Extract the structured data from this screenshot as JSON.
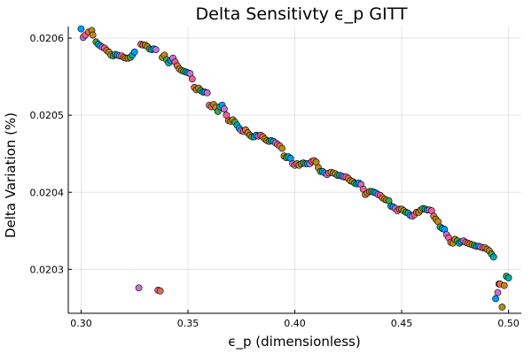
{
  "chart_data": {
    "type": "scatter",
    "title": "Delta Sensitivty ϵ_p GITT",
    "xlabel": "ϵ_p (dimensionless)",
    "ylabel": "Delta Variation (%)",
    "xlim": [
      0.294,
      0.506
    ],
    "ylim": [
      0.020243,
      0.020615
    ],
    "xticks": [
      {
        "value": 0.3,
        "label": "0.30"
      },
      {
        "value": 0.35,
        "label": "0.35"
      },
      {
        "value": 0.4,
        "label": "0.40"
      },
      {
        "value": 0.45,
        "label": "0.45"
      },
      {
        "value": 0.5,
        "label": "0.50"
      }
    ],
    "yticks": [
      {
        "value": 0.0203,
        "label": "0.0203"
      },
      {
        "value": 0.0204,
        "label": "0.0204"
      },
      {
        "value": 0.0205,
        "label": "0.0205"
      },
      {
        "value": 0.0206,
        "label": "0.0206"
      }
    ],
    "grid": true,
    "legend": "none",
    "palette": [
      "#009AFA",
      "#E36F47",
      "#3EA44E",
      "#C371D2",
      "#AC8E18",
      "#00AAAE",
      "#ED5E93",
      "#C68225"
    ],
    "points": [
      [
        0.3,
        0.020612
      ],
      [
        0.301,
        0.020601
      ],
      [
        0.302,
        0.020604
      ],
      [
        0.3035,
        0.020608
      ],
      [
        0.305,
        0.02061
      ],
      [
        0.3055,
        0.020604
      ],
      [
        0.307,
        0.020595
      ],
      [
        0.308,
        0.020592
      ],
      [
        0.309,
        0.02059
      ],
      [
        0.31,
        0.020588
      ],
      [
        0.311,
        0.020587
      ],
      [
        0.312,
        0.020584
      ],
      [
        0.313,
        0.020582
      ],
      [
        0.314,
        0.020578
      ],
      [
        0.315,
        0.020577
      ],
      [
        0.316,
        0.020579
      ],
      [
        0.317,
        0.020578
      ],
      [
        0.318,
        0.020577
      ],
      [
        0.319,
        0.020577
      ],
      [
        0.32,
        0.020575
      ],
      [
        0.321,
        0.020574
      ],
      [
        0.322,
        0.020574
      ],
      [
        0.323,
        0.020575
      ],
      [
        0.324,
        0.020578
      ],
      [
        0.325,
        0.020582
      ],
      [
        0.327,
        0.020276
      ],
      [
        0.328,
        0.020592
      ],
      [
        0.329,
        0.020591
      ],
      [
        0.33,
        0.020591
      ],
      [
        0.331,
        0.020589
      ],
      [
        0.332,
        0.020586
      ],
      [
        0.333,
        0.020585
      ],
      [
        0.334,
        0.020586
      ],
      [
        0.335,
        0.020585
      ],
      [
        0.336,
        0.020273
      ],
      [
        0.337,
        0.020272
      ],
      [
        0.338,
        0.020575
      ],
      [
        0.339,
        0.020578
      ],
      [
        0.34,
        0.020572
      ],
      [
        0.341,
        0.020568
      ],
      [
        0.342,
        0.020571
      ],
      [
        0.343,
        0.020574
      ],
      [
        0.344,
        0.020569
      ],
      [
        0.345,
        0.020564
      ],
      [
        0.346,
        0.02056
      ],
      [
        0.347,
        0.020558
      ],
      [
        0.348,
        0.020557
      ],
      [
        0.349,
        0.020556
      ],
      [
        0.35,
        0.020555
      ],
      [
        0.351,
        0.020554
      ],
      [
        0.352,
        0.020547
      ],
      [
        0.353,
        0.020536
      ],
      [
        0.354,
        0.020533
      ],
      [
        0.355,
        0.020535
      ],
      [
        0.356,
        0.020532
      ],
      [
        0.357,
        0.02053
      ],
      [
        0.358,
        0.02053
      ],
      [
        0.359,
        0.020529
      ],
      [
        0.36,
        0.020513
      ],
      [
        0.361,
        0.020511
      ],
      [
        0.362,
        0.020514
      ],
      [
        0.363,
        0.02051
      ],
      [
        0.364,
        0.020505
      ],
      [
        0.365,
        0.020511
      ],
      [
        0.366,
        0.020513
      ],
      [
        0.367,
        0.020508
      ],
      [
        0.368,
        0.0205
      ],
      [
        0.369,
        0.020493
      ],
      [
        0.37,
        0.020492
      ],
      [
        0.371,
        0.020494
      ],
      [
        0.372,
        0.020491
      ],
      [
        0.373,
        0.020487
      ],
      [
        0.374,
        0.020483
      ],
      [
        0.375,
        0.02048
      ],
      [
        0.376,
        0.020479
      ],
      [
        0.377,
        0.020481
      ],
      [
        0.378,
        0.020477
      ],
      [
        0.379,
        0.020474
      ],
      [
        0.38,
        0.020472
      ],
      [
        0.381,
        0.020472
      ],
      [
        0.382,
        0.020474
      ],
      [
        0.383,
        0.020473
      ],
      [
        0.384,
        0.020474
      ],
      [
        0.385,
        0.020472
      ],
      [
        0.386,
        0.020469
      ],
      [
        0.387,
        0.020467
      ],
      [
        0.388,
        0.020466
      ],
      [
        0.389,
        0.020467
      ],
      [
        0.39,
        0.020466
      ],
      [
        0.391,
        0.020464
      ],
      [
        0.392,
        0.020462
      ],
      [
        0.393,
        0.02046
      ],
      [
        0.394,
        0.020457
      ],
      [
        0.395,
        0.020447
      ],
      [
        0.396,
        0.020445
      ],
      [
        0.397,
        0.020446
      ],
      [
        0.398,
        0.020444
      ],
      [
        0.399,
        0.020437
      ],
      [
        0.4,
        0.020435
      ],
      [
        0.401,
        0.020437
      ],
      [
        0.402,
        0.020435
      ],
      [
        0.403,
        0.020437
      ],
      [
        0.404,
        0.020438
      ],
      [
        0.405,
        0.020437
      ],
      [
        0.406,
        0.020437
      ],
      [
        0.407,
        0.020437
      ],
      [
        0.408,
        0.02044
      ],
      [
        0.409,
        0.020441
      ],
      [
        0.41,
        0.020439
      ],
      [
        0.411,
        0.020432
      ],
      [
        0.412,
        0.020427
      ],
      [
        0.413,
        0.020427
      ],
      [
        0.414,
        0.020425
      ],
      [
        0.415,
        0.020423
      ],
      [
        0.416,
        0.020425
      ],
      [
        0.417,
        0.020426
      ],
      [
        0.418,
        0.020425
      ],
      [
        0.419,
        0.020424
      ],
      [
        0.42,
        0.020422
      ],
      [
        0.421,
        0.020422
      ],
      [
        0.422,
        0.020421
      ],
      [
        0.423,
        0.02042
      ],
      [
        0.424,
        0.02042
      ],
      [
        0.425,
        0.020418
      ],
      [
        0.426,
        0.020415
      ],
      [
        0.427,
        0.020414
      ],
      [
        0.428,
        0.020412
      ],
      [
        0.429,
        0.020411
      ],
      [
        0.43,
        0.020412
      ],
      [
        0.431,
        0.02041
      ],
      [
        0.432,
        0.020404
      ],
      [
        0.433,
        0.020397
      ],
      [
        0.434,
        0.020399
      ],
      [
        0.435,
        0.020401
      ],
      [
        0.436,
        0.020401
      ],
      [
        0.437,
        0.0204
      ],
      [
        0.438,
        0.020399
      ],
      [
        0.439,
        0.020397
      ],
      [
        0.44,
        0.020396
      ],
      [
        0.441,
        0.020393
      ],
      [
        0.442,
        0.020391
      ],
      [
        0.443,
        0.02039
      ],
      [
        0.444,
        0.020389
      ],
      [
        0.445,
        0.020382
      ],
      [
        0.446,
        0.020381
      ],
      [
        0.447,
        0.020379
      ],
      [
        0.448,
        0.020376
      ],
      [
        0.449,
        0.020378
      ],
      [
        0.45,
        0.020378
      ],
      [
        0.451,
        0.020376
      ],
      [
        0.452,
        0.020374
      ],
      [
        0.453,
        0.020373
      ],
      [
        0.454,
        0.02037
      ],
      [
        0.455,
        0.020369
      ],
      [
        0.456,
        0.020371
      ],
      [
        0.457,
        0.020374
      ],
      [
        0.458,
        0.020374
      ],
      [
        0.459,
        0.020377
      ],
      [
        0.46,
        0.020379
      ],
      [
        0.461,
        0.020378
      ],
      [
        0.462,
        0.020377
      ],
      [
        0.463,
        0.020377
      ],
      [
        0.464,
        0.020376
      ],
      [
        0.465,
        0.020369
      ],
      [
        0.466,
        0.020365
      ],
      [
        0.467,
        0.020362
      ],
      [
        0.468,
        0.020355
      ],
      [
        0.469,
        0.020353
      ],
      [
        0.47,
        0.020352
      ],
      [
        0.471,
        0.020345
      ],
      [
        0.472,
        0.020341
      ],
      [
        0.473,
        0.020335
      ],
      [
        0.474,
        0.020334
      ],
      [
        0.475,
        0.020339
      ],
      [
        0.476,
        0.020337
      ],
      [
        0.477,
        0.020334
      ],
      [
        0.478,
        0.020336
      ],
      [
        0.479,
        0.020337
      ],
      [
        0.48,
        0.020335
      ],
      [
        0.481,
        0.020334
      ],
      [
        0.482,
        0.020333
      ],
      [
        0.483,
        0.020332
      ],
      [
        0.484,
        0.020331
      ],
      [
        0.485,
        0.02033
      ],
      [
        0.486,
        0.02033
      ],
      [
        0.487,
        0.020329
      ],
      [
        0.488,
        0.020328
      ],
      [
        0.489,
        0.020328
      ],
      [
        0.49,
        0.020326
      ],
      [
        0.491,
        0.020324
      ],
      [
        0.492,
        0.02032
      ],
      [
        0.493,
        0.020316
      ],
      [
        0.494,
        0.020262
      ],
      [
        0.495,
        0.02027
      ],
      [
        0.4955,
        0.020281
      ],
      [
        0.496,
        0.020281
      ],
      [
        0.497,
        0.020251
      ],
      [
        0.498,
        0.020279
      ],
      [
        0.499,
        0.020291
      ],
      [
        0.5,
        0.020289
      ]
    ]
  }
}
